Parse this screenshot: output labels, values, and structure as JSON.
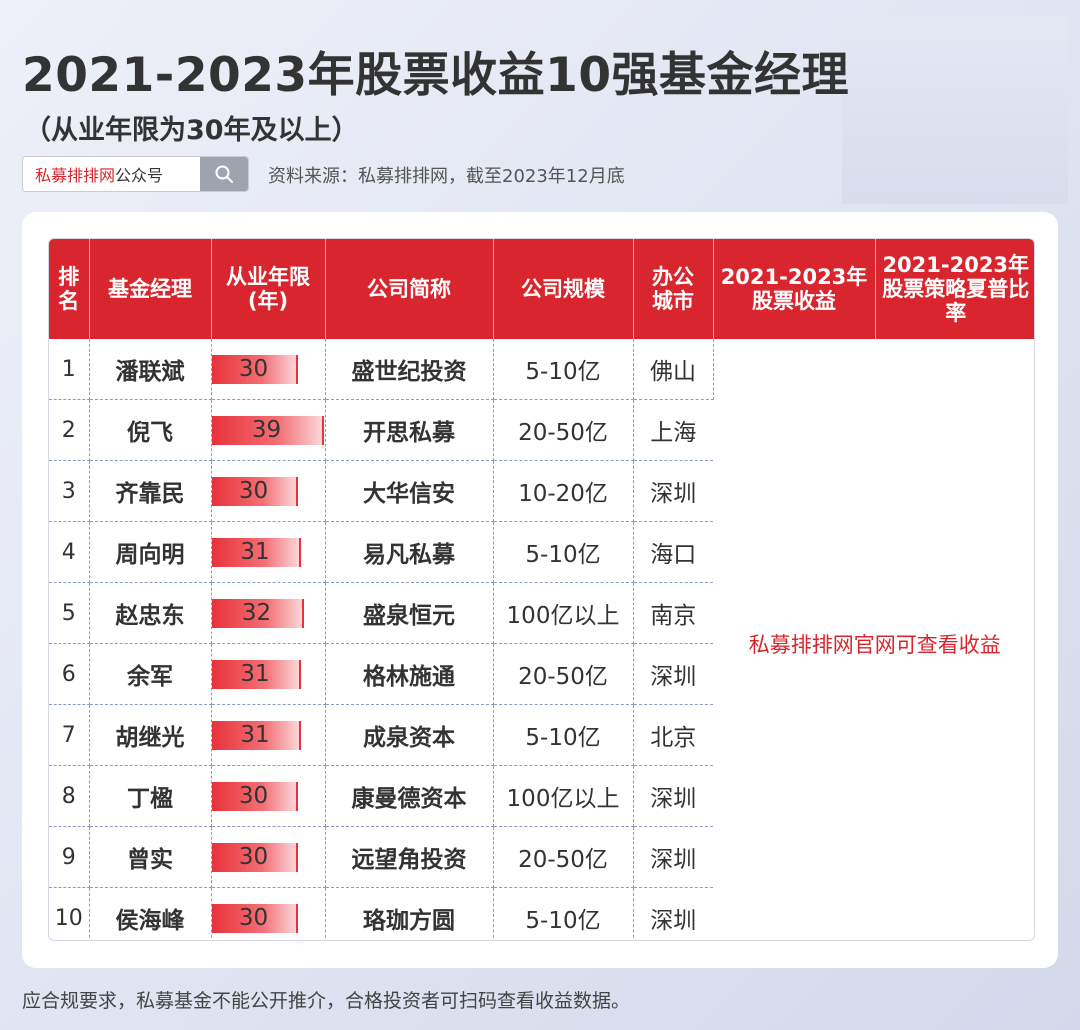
{
  "title": "2021-2023年股票收益10强基金经理",
  "subtitle": "（从业年限为30年及以上）",
  "search": {
    "brand": "私募排排网",
    "suffix": "公众号",
    "icon": "search-icon"
  },
  "source": "资料来源：私募排排网，截至2023年12月底",
  "colors": {
    "accent": "#d9262e",
    "bar": "#e8323a"
  },
  "table": {
    "headers": {
      "rank": "排名",
      "manager": "基金经理",
      "years": "从业年限(年)",
      "company": "公司简称",
      "scale": "公司规模",
      "city": "办公城市",
      "return": "2021-2023年股票收益",
      "sharpe": "2021-2023年股票策略夏普比率"
    },
    "note": "私募排排网官网可查看收益",
    "max_years": 39,
    "rows": [
      {
        "rank": "1",
        "manager": "潘联斌",
        "years": 30,
        "company": "盛世纪投资",
        "scale": "5-10亿",
        "city": "佛山"
      },
      {
        "rank": "2",
        "manager": "倪飞",
        "years": 39,
        "company": "开思私募",
        "scale": "20-50亿",
        "city": "上海"
      },
      {
        "rank": "3",
        "manager": "齐靠民",
        "years": 30,
        "company": "大华信安",
        "scale": "10-20亿",
        "city": "深圳"
      },
      {
        "rank": "4",
        "manager": "周向明",
        "years": 31,
        "company": "易凡私募",
        "scale": "5-10亿",
        "city": "海口"
      },
      {
        "rank": "5",
        "manager": "赵忠东",
        "years": 32,
        "company": "盛泉恒元",
        "scale": "100亿以上",
        "city": "南京"
      },
      {
        "rank": "6",
        "manager": "余军",
        "years": 31,
        "company": "格林施通",
        "scale": "20-50亿",
        "city": "深圳"
      },
      {
        "rank": "7",
        "manager": "胡继光",
        "years": 31,
        "company": "成泉资本",
        "scale": "5-10亿",
        "city": "北京"
      },
      {
        "rank": "8",
        "manager": "丁楹",
        "years": 30,
        "company": "康曼德资本",
        "scale": "100亿以上",
        "city": "深圳"
      },
      {
        "rank": "9",
        "manager": "曾实",
        "years": 30,
        "company": "远望角投资",
        "scale": "20-50亿",
        "city": "深圳"
      },
      {
        "rank": "10",
        "manager": "侯海峰",
        "years": 30,
        "company": "珞珈方圆",
        "scale": "5-10亿",
        "city": "深圳"
      }
    ]
  },
  "footer": "应合规要求，私募基金不能公开推介，合格投资者可扫码查看收益数据。"
}
